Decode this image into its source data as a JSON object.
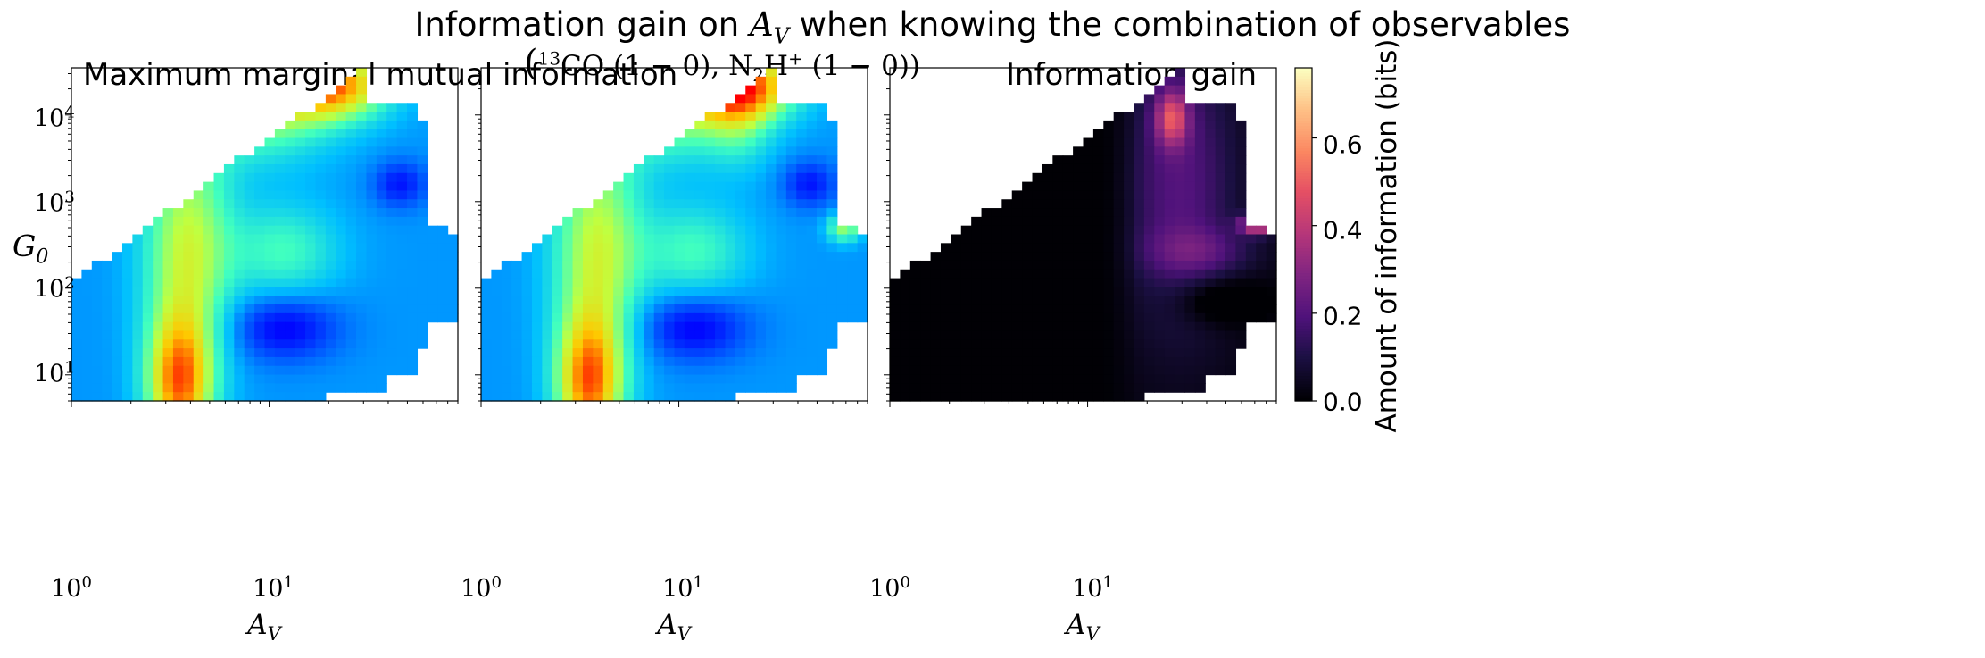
{
  "figure": {
    "suptitle": "Information gain on A_V when knowing the combination of observables",
    "suptitle_prefix": "Information gain on ",
    "suptitle_sym": "A",
    "suptitle_sub": "V",
    "suptitle_suffix": " when knowing the combination of observables"
  },
  "colors": {
    "outside": "#ffffff"
  },
  "chart_data": [
    {
      "type": "heatmap",
      "title": "Maximum marginal mutual information",
      "xlabel": "A_V",
      "ylabel": "G_0",
      "xscale": "log",
      "yscale": "log",
      "xlim": [
        1,
        90
      ],
      "ylim": [
        5,
        35000
      ],
      "xticks": [
        "10^0",
        "10^1"
      ],
      "yticks": [
        "10^1",
        "10^2",
        "10^3",
        "10^4"
      ],
      "colormap": "jet",
      "value_range": [
        0,
        0.6
      ],
      "grid": "off"
    },
    {
      "type": "heatmap",
      "title": "(13CO (1-0), N2H+ (1-0))",
      "xlabel": "A_V",
      "xscale": "log",
      "yscale": "log",
      "xlim": [
        1,
        90
      ],
      "ylim": [
        5,
        35000
      ],
      "xticks": [
        "10^0",
        "10^1"
      ],
      "colormap": "jet",
      "value_range": [
        0,
        0.6
      ],
      "grid": "off"
    },
    {
      "type": "heatmap",
      "title": "Information gain",
      "xlabel": "A_V",
      "xscale": "log",
      "yscale": "log",
      "xlim": [
        1,
        90
      ],
      "ylim": [
        5,
        35000
      ],
      "xticks": [
        "10^0",
        "10^1"
      ],
      "colormap": "magma",
      "value_range": [
        0,
        0.76
      ],
      "colorbar": {
        "label": "Amount of information (bits)",
        "ticks": [
          "0.0",
          "0.2",
          "0.4",
          "0.6"
        ],
        "tick_values": [
          0.0,
          0.2,
          0.4,
          0.6
        ]
      },
      "grid": "off"
    }
  ],
  "labels": {
    "panel1_title": "Maximum marginal mutual information",
    "panel3_title": "Information gain",
    "x_base": "10",
    "x_exp0": "0",
    "x_exp1": "1",
    "y_base": "10",
    "y_exp": [
      "4",
      "3",
      "2",
      "1"
    ],
    "axis_sym_x": "A",
    "axis_sub_x": "V",
    "axis_sym_y": "G",
    "axis_sub_y": "0",
    "colorbar_label": "Amount of information (bits)",
    "cb_ticks": [
      "0.6",
      "0.4",
      "0.2",
      "0.0"
    ],
    "t2_open": "(",
    "t2_sup13": "13",
    "t2_co": "CO (1 − 0), N",
    "t2_sub2": "2",
    "t2_h": "H",
    "t2_plus": "+",
    "t2_end": " (1 − 0))"
  }
}
